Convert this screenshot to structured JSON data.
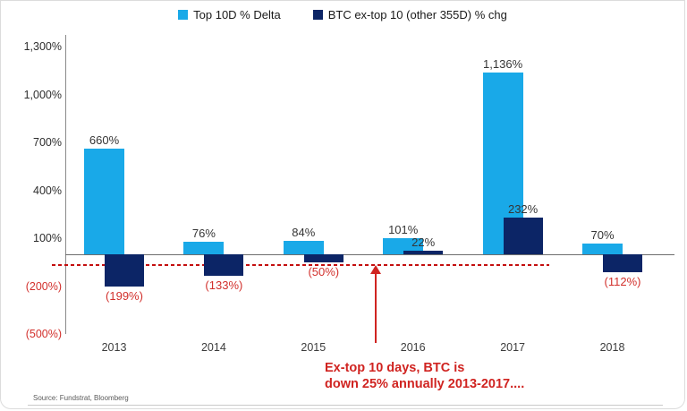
{
  "legend": {
    "items": [
      {
        "name": "top10d",
        "label": "Top 10D % Delta",
        "color": "#19A9E8"
      },
      {
        "name": "btc-ex-top10",
        "label": "BTC ex-top 10 (other 355D) % chg",
        "color": "#0C2566"
      }
    ]
  },
  "chart_data": {
    "type": "bar",
    "categories": [
      "2013",
      "2014",
      "2015",
      "2016",
      "2017",
      "2018"
    ],
    "series": [
      {
        "name": "Top 10D % Delta",
        "color": "#19A9E8",
        "values": [
          660,
          76,
          84,
          101,
          1136,
          70
        ],
        "labels": [
          "660%",
          "76%",
          "84%",
          "101%",
          "1,136%",
          "70%"
        ]
      },
      {
        "name": "BTC ex-top 10 (other 355D) % chg",
        "color": "#0C2566",
        "values": [
          -199,
          -133,
          -50,
          22,
          232,
          -112
        ],
        "labels": [
          "(199%)",
          "(133%)",
          "(50%)",
          "22%",
          "232%",
          "(112%)"
        ]
      }
    ],
    "xlabel": "",
    "ylabel": "",
    "ylim": [
      -500,
      1400
    ],
    "grid": false,
    "legend_position": "top-center",
    "yticks": [
      {
        "value": 1300,
        "label": "1,300%"
      },
      {
        "value": 1000,
        "label": "1,000%"
      },
      {
        "value": 700,
        "label": "700%"
      },
      {
        "value": 400,
        "label": "400%"
      },
      {
        "value": 100,
        "label": "100%"
      },
      {
        "value": -200,
        "label": "(200%)"
      },
      {
        "value": -500,
        "label": "(500%)"
      }
    ],
    "reference_line": {
      "value": -68,
      "style": "dashed",
      "color": "#c40f0f"
    },
    "annotation": {
      "line1": "Ex-top 10 days, BTC is",
      "line2": "down 25% annually 2013-2017....",
      "color": "#d02421"
    }
  },
  "source": "Source: Fundstrat, Bloomberg",
  "colors": {
    "negative_label": "#d2302c",
    "axis": "#6e6e6e",
    "background": "#ffffff"
  }
}
